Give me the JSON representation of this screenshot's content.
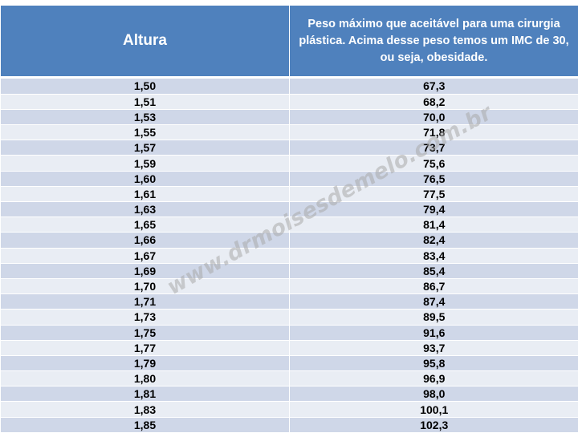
{
  "header": {
    "col_height": "Altura",
    "col_weight": "Peso máximo que aceitável para uma cirurgia plástica. Acima desse peso temos um IMC de 30, ou seja, obesidade."
  },
  "rows": [
    {
      "altura": "1,50",
      "peso": "67,3"
    },
    {
      "altura": "1,51",
      "peso": "68,2"
    },
    {
      "altura": "1,53",
      "peso": "70,0"
    },
    {
      "altura": "1,55",
      "peso": "71,8"
    },
    {
      "altura": "1,57",
      "peso": "73,7"
    },
    {
      "altura": "1,59",
      "peso": "75,6"
    },
    {
      "altura": "1,60",
      "peso": "76,5"
    },
    {
      "altura": "1,61",
      "peso": "77,5"
    },
    {
      "altura": "1,63",
      "peso": "79,4"
    },
    {
      "altura": "1,65",
      "peso": "81,4"
    },
    {
      "altura": "1,66",
      "peso": "82,4"
    },
    {
      "altura": "1,67",
      "peso": "83,4"
    },
    {
      "altura": "1,69",
      "peso": "85,4"
    },
    {
      "altura": "1,70",
      "peso": "86,7"
    },
    {
      "altura": "1,71",
      "peso": "87,4"
    },
    {
      "altura": "1,73",
      "peso": "89,5"
    },
    {
      "altura": "1,75",
      "peso": "91,6"
    },
    {
      "altura": "1,77",
      "peso": "93,7"
    },
    {
      "altura": "1,79",
      "peso": "95,8"
    },
    {
      "altura": "1,80",
      "peso": "96,9"
    },
    {
      "altura": "1,81",
      "peso": "98,0"
    },
    {
      "altura": "1,83",
      "peso": "100,1"
    },
    {
      "altura": "1,85",
      "peso": "102,3"
    }
  ],
  "watermark": "www.drmoisesdemelo.com.br",
  "colors": {
    "header_bg": "#4f81bd",
    "row_dark": "#cfd7e8",
    "row_light": "#e9edf4"
  }
}
